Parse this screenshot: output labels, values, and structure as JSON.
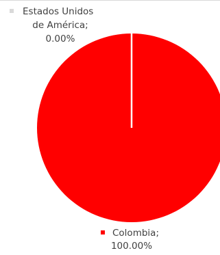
{
  "chart_data": {
    "type": "pie",
    "slices": [
      {
        "label": "Colombia",
        "value": 100.0,
        "display": "100.00%",
        "color": "#ff0000"
      },
      {
        "label": "Estados Unidos de América",
        "value": 0.0,
        "display": "0.00%",
        "color": "#d9d9d9"
      }
    ],
    "data_labels": [
      {
        "lines": [
          "Colombia;",
          "100.00%"
        ],
        "color": "#ff0000"
      },
      {
        "lines": [
          "Estados Unidos",
          "de América;",
          "0.00%"
        ],
        "color": "#d9d9d9"
      }
    ],
    "start_angle_deg": 0,
    "direction": "clockwise",
    "divider_color": "#ffffff"
  }
}
